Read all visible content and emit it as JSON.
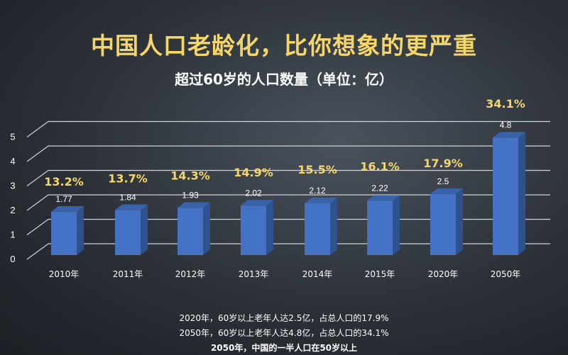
{
  "title": "中国人口老龄化，比你想象的更严重",
  "subtitle": "超过60岁的人口数量（单位：亿）",
  "chart_data": {
    "type": "bar",
    "categories": [
      "2010年",
      "2011年",
      "2012年",
      "2013年",
      "2014年",
      "2015年",
      "2020年",
      "2050年"
    ],
    "values": [
      1.77,
      1.84,
      1.93,
      2.02,
      2.12,
      2.22,
      2.5,
      4.8
    ],
    "value_labels": [
      "1.77",
      "1.84",
      "1.93",
      "2.02",
      "2.12",
      "2.22",
      "2.5",
      "4.8"
    ],
    "percent_labels": [
      "13.2%",
      "13.7%",
      "14.3%",
      "14.9%",
      "15.5%",
      "16.1%",
      "17.9%",
      "34.1%"
    ],
    "yticks": [
      "0",
      "1",
      "2",
      "3",
      "4",
      "5"
    ],
    "ylim": [
      0,
      5
    ],
    "grid": true,
    "style": "3d",
    "colors": {
      "bar": "#4472c4",
      "bar_side": "#2f528f",
      "bar_top": "#3a62a8",
      "percent": "#f5d66a"
    }
  },
  "notes": [
    "2020年，60岁以上老年人达2.5亿，占总人口的17.9%",
    "2050年，60岁以上老年人达4.8亿，占总人口的34.1%",
    "2050年，中国的一半人口在50岁以上"
  ]
}
